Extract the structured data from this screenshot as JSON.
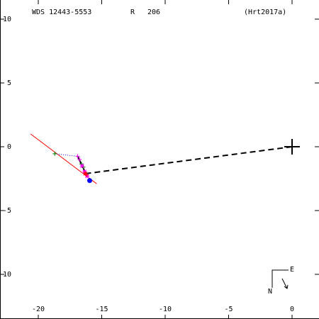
{
  "header": {
    "designation": "WDS 12443-5553",
    "grade_label": "R",
    "grade_value": "206",
    "reference": "(Hrt2017a)"
  },
  "compass": {
    "north": "N",
    "east": "E"
  },
  "colors": {
    "axis": "#000000",
    "orbit": "#000000",
    "fit_line": "#ff0000",
    "residual": "#0000cc",
    "obs_green": "#008000",
    "obs_magenta": "#ff00ff",
    "obs_red": "#ff0000",
    "obs_blue": "#0000ff"
  },
  "chart_data": {
    "type": "scatter",
    "title": "",
    "xlim": [
      -22.5,
      2
    ],
    "ylim": [
      -13.5,
      10.5
    ],
    "x_ticks": [
      -20,
      -15,
      -10,
      -5,
      0
    ],
    "x_tick_labels": [
      "-20",
      "-15",
      "-10",
      "-5",
      "0"
    ],
    "y_ticks": [
      10,
      5,
      0,
      -5,
      -10
    ],
    "y_tick_labels": [
      "10",
      "5",
      "0",
      "-5",
      "-10"
    ],
    "primary": [
      0,
      0
    ],
    "orbit_arc": [
      [
        0,
        0
      ],
      [
        -16.2,
        -2.1
      ]
    ],
    "fit_line": [
      [
        -20.6,
        1.0
      ],
      [
        -15.4,
        -2.9
      ]
    ],
    "observations": [
      {
        "x": -18.7,
        "y": -0.55,
        "marker": "plus",
        "color": "obs_green"
      },
      {
        "x": -16.9,
        "y": -0.75,
        "marker": "plus",
        "color": "obs_magenta"
      },
      {
        "x": -16.75,
        "y": -1.0,
        "marker": "plus",
        "color": "obs_magenta"
      },
      {
        "x": -16.6,
        "y": -1.35,
        "marker": "plus",
        "color": "obs_green"
      },
      {
        "x": -16.45,
        "y": -1.6,
        "marker": "plus",
        "color": "obs_green"
      },
      {
        "x": -16.55,
        "y": -1.5,
        "marker": "star",
        "color": "obs_magenta"
      },
      {
        "x": -16.35,
        "y": -1.95,
        "marker": "star",
        "color": "obs_magenta"
      },
      {
        "x": -16.3,
        "y": -2.1,
        "marker": "star",
        "color": "obs_red"
      },
      {
        "x": -16.15,
        "y": -2.3,
        "marker": "star",
        "color": "obs_magenta"
      },
      {
        "x": -16.2,
        "y": -2.2,
        "marker": "plus",
        "color": "obs_red"
      },
      {
        "x": -15.95,
        "y": -2.65,
        "marker": "dot",
        "color": "obs_blue"
      }
    ],
    "residual_links": [
      [
        [
          -18.7,
          -0.55
        ],
        [
          -16.9,
          -0.75
        ]
      ]
    ]
  }
}
